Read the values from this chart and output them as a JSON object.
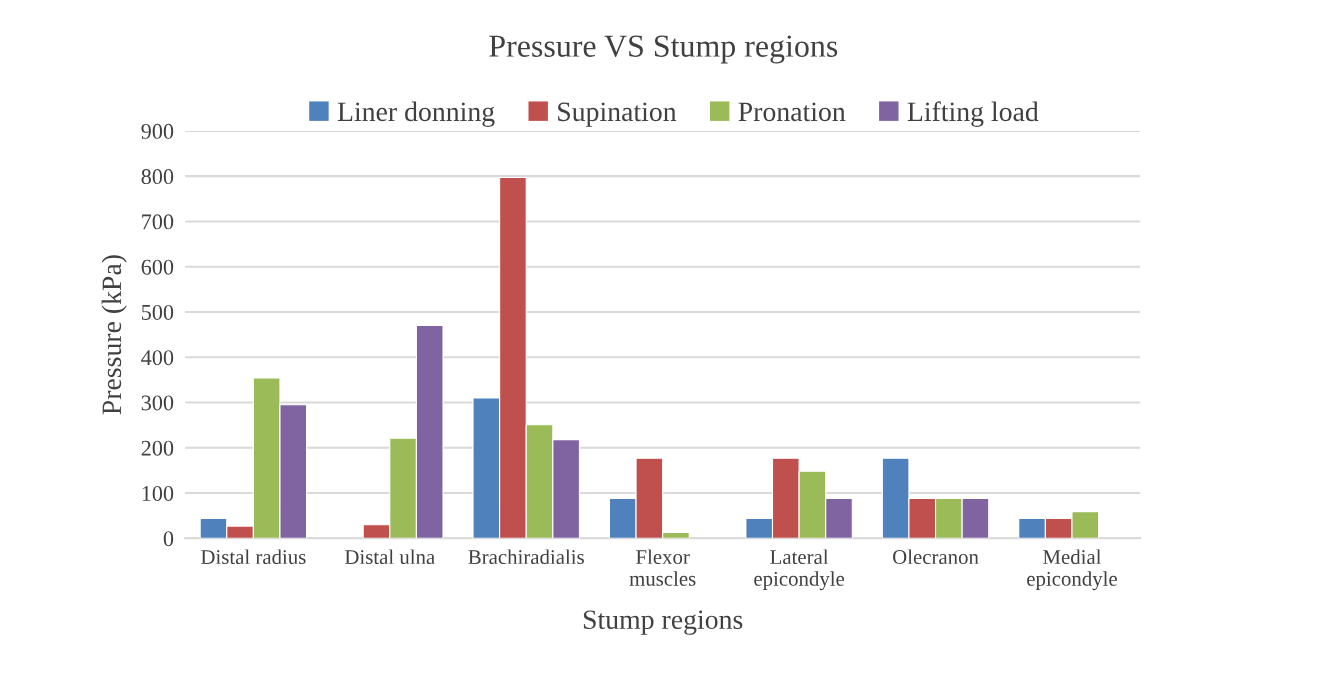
{
  "chart_data": {
    "type": "bar",
    "title": "Pressure VS Stump regions",
    "xlabel": "Stump regions",
    "ylabel": "Pressure (kPa)",
    "categories": [
      "Distal radius",
      "Distal ulna",
      "Brachiradialis",
      "Flexor\nmuscles",
      "Lateral\nepicondyle",
      "Olecranon",
      "Medial\nepicondyle"
    ],
    "series": [
      {
        "name": "Liner donning",
        "color": "#4f81bd",
        "values": [
          44,
          null,
          310,
          88,
          44,
          177,
          44
        ]
      },
      {
        "name": "Supination",
        "color": "#c0504d",
        "values": [
          27,
          30,
          797,
          177,
          177,
          88,
          44
        ]
      },
      {
        "name": "Pronation",
        "color": "#9bbb59",
        "values": [
          354,
          221,
          251,
          13,
          148,
          88,
          59
        ]
      },
      {
        "name": "Lifting load",
        "color": "#8064a2",
        "values": [
          295,
          470,
          218,
          null,
          88,
          88,
          null
        ]
      }
    ],
    "ylim": [
      0,
      900
    ],
    "yticks": [
      0,
      100,
      200,
      300,
      400,
      500,
      600,
      700,
      800,
      900
    ],
    "grid": "y",
    "legend": "top"
  }
}
